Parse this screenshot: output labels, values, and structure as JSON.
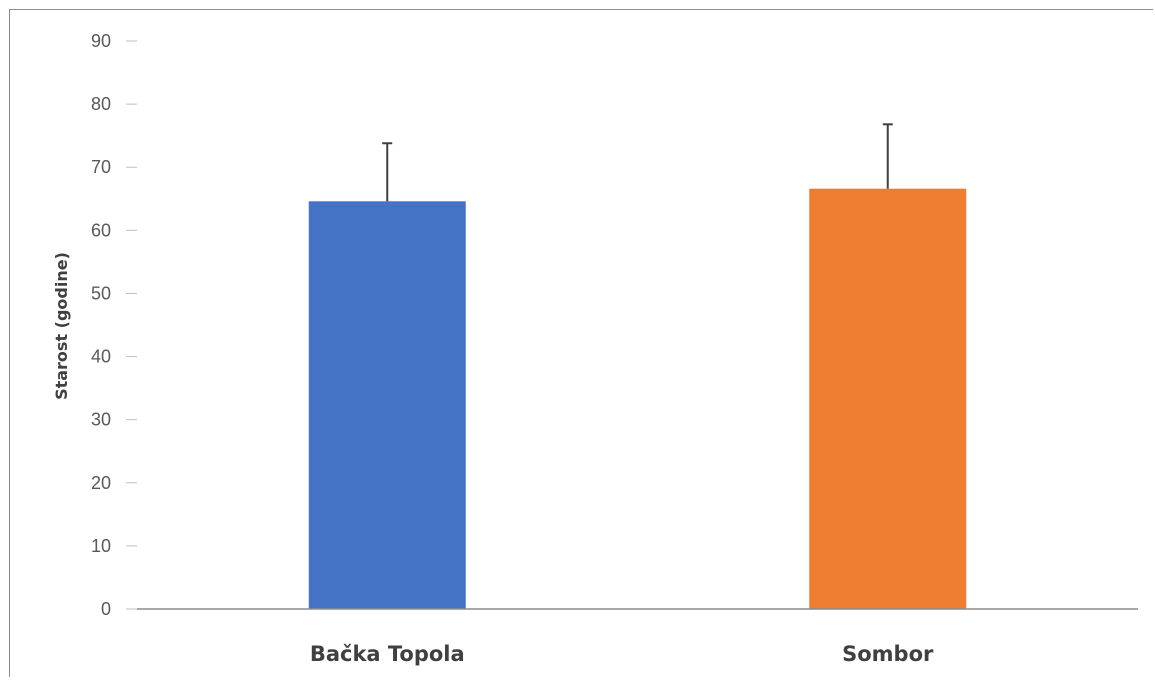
{
  "chart_data": {
    "type": "bar",
    "categories": [
      "Bačka Topola",
      "Sombor"
    ],
    "values": [
      64.6,
      66.6
    ],
    "error_plus": [
      9.2,
      10.2
    ],
    "colors": [
      "#4472c4",
      "#ed7d31"
    ],
    "title": "",
    "xlabel": "",
    "ylabel": "Starost (godine)",
    "ylim": [
      0,
      90
    ],
    "yticks": [
      0,
      10,
      20,
      30,
      40,
      50,
      60,
      70,
      80,
      90
    ],
    "grid": false,
    "legend": "none"
  }
}
